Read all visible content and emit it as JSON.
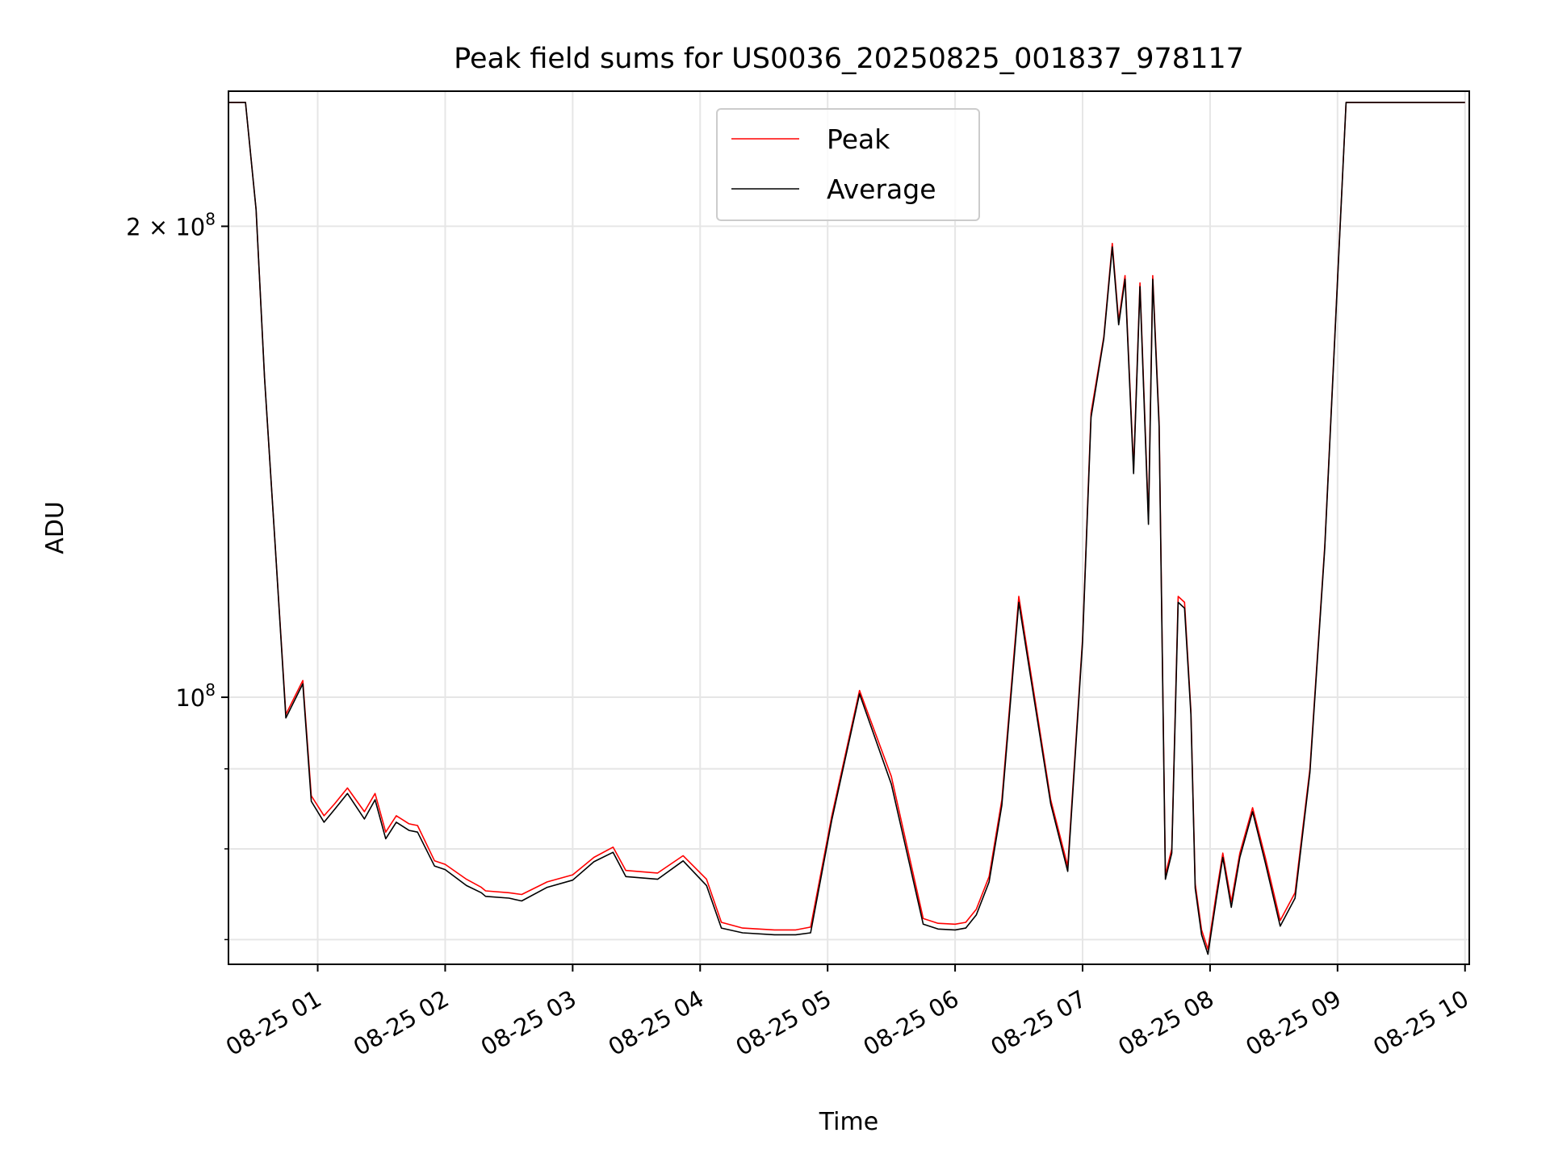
{
  "chart_data": {
    "type": "line",
    "title": "Peak field sums for US0036_20250825_001837_978117",
    "xlabel": "Time",
    "ylabel": "ADU",
    "yscale": "log",
    "ylim": [
      67500000,
      244000000
    ],
    "xlim": [
      "2025-08-25 00:18",
      "2025-08-25 10:02"
    ],
    "grid": true,
    "legend_position": "top-center",
    "x_tick_labels": [
      "08-25 01",
      "08-25 02",
      "08-25 03",
      "08-25 04",
      "08-25 05",
      "08-25 06",
      "08-25 07",
      "08-25 08",
      "08-25 09",
      "08-25 10"
    ],
    "x_ticks": [
      "2025-08-25 01:00",
      "2025-08-25 02:00",
      "2025-08-25 03:00",
      "2025-08-25 04:00",
      "2025-08-25 05:00",
      "2025-08-25 06:00",
      "2025-08-25 07:00",
      "2025-08-25 08:00",
      "2025-08-25 09:00",
      "2025-08-25 10:00"
    ],
    "y_major_ticks": [
      {
        "value": 100000000,
        "label_base": "10",
        "label_exp": "8"
      },
      {
        "value": 200000000,
        "label_base": "2 × 10",
        "label_exp": "8"
      }
    ],
    "y_minor_ticks": [
      70000000,
      80000000,
      90000000
    ],
    "series": [
      {
        "name": "Peak",
        "color": "#ff0000",
        "x": [
          "2025-08-25 00:18",
          "2025-08-25 00:26",
          "2025-08-25 00:31",
          "2025-08-25 00:35",
          "2025-08-25 00:40",
          "2025-08-25 00:45",
          "2025-08-25 00:53",
          "2025-08-25 00:57",
          "2025-08-25 01:03",
          "2025-08-25 01:08",
          "2025-08-25 01:14",
          "2025-08-25 01:22",
          "2025-08-25 01:27",
          "2025-08-25 01:32",
          "2025-08-25 01:37",
          "2025-08-25 01:43",
          "2025-08-25 01:47",
          "2025-08-25 01:55",
          "2025-08-25 02:00",
          "2025-08-25 02:10",
          "2025-08-25 02:17",
          "2025-08-25 02:19",
          "2025-08-25 02:30",
          "2025-08-25 02:36",
          "2025-08-25 02:48",
          "2025-08-25 03:00",
          "2025-08-25 03:10",
          "2025-08-25 03:19",
          "2025-08-25 03:25",
          "2025-08-25 03:40",
          "2025-08-25 03:52",
          "2025-08-25 04:03",
          "2025-08-25 04:10",
          "2025-08-25 04:20",
          "2025-08-25 04:35",
          "2025-08-25 04:45",
          "2025-08-25 04:52",
          "2025-08-25 05:02",
          "2025-08-25 05:15",
          "2025-08-25 05:30",
          "2025-08-25 05:45",
          "2025-08-25 05:52",
          "2025-08-25 06:00",
          "2025-08-25 06:05",
          "2025-08-25 06:10",
          "2025-08-25 06:16",
          "2025-08-25 06:22",
          "2025-08-25 06:30",
          "2025-08-25 06:45",
          "2025-08-25 06:53",
          "2025-08-25 07:00",
          "2025-08-25 07:04",
          "2025-08-25 07:10",
          "2025-08-25 07:14",
          "2025-08-25 07:17",
          "2025-08-25 07:20",
          "2025-08-25 07:24",
          "2025-08-25 07:27",
          "2025-08-25 07:31",
          "2025-08-25 07:33",
          "2025-08-25 07:36",
          "2025-08-25 07:39",
          "2025-08-25 07:42",
          "2025-08-25 07:45",
          "2025-08-25 07:48",
          "2025-08-25 07:51",
          "2025-08-25 07:53",
          "2025-08-25 07:56",
          "2025-08-25 07:59",
          "2025-08-25 08:03",
          "2025-08-25 08:06",
          "2025-08-25 08:10",
          "2025-08-25 08:14",
          "2025-08-25 08:20",
          "2025-08-25 08:26",
          "2025-08-25 08:33",
          "2025-08-25 08:40",
          "2025-08-25 08:47",
          "2025-08-25 08:54",
          "2025-08-25 09:00",
          "2025-08-25 09:04",
          "2025-08-25 09:10",
          "2025-08-25 09:17",
          "2025-08-25 09:23",
          "2025-08-25 09:28",
          "2025-08-25 09:34",
          "2025-08-25 09:40",
          "2025-08-25 09:48",
          "2025-08-25 09:55",
          "2025-08-25 10:00"
        ],
        "y": [
          240000000,
          240000000,
          205000000,
          160000000,
          125000000,
          97500000,
          102500000,
          86500000,
          84000000,
          85500000,
          87500000,
          84500000,
          86800000,
          82000000,
          84000000,
          83000000,
          82800000,
          78600000,
          78200000,
          76500000,
          75600000,
          75200000,
          75000000,
          74800000,
          76200000,
          77000000,
          79000000,
          80200000,
          77500000,
          77200000,
          79200000,
          76500000,
          71800000,
          71200000,
          71000000,
          71000000,
          71300000,
          84000000,
          101000000,
          89000000,
          72200000,
          71700000,
          71600000,
          71800000,
          73200000,
          76800000,
          86000000,
          116000000,
          86000000,
          78000000,
          109000000,
          152000000,
          170000000,
          195000000,
          174000000,
          186000000,
          140000000,
          184000000,
          130000000,
          186000000,
          150000000,
          77000000,
          80000000,
          116000000,
          115000000,
          98000000,
          76000000,
          71000000,
          69000000,
          75000000,
          79500000,
          74000000,
          79500000,
          85000000,
          79000000,
          72000000,
          75000000,
          90000000,
          125000000,
          185000000,
          240000000,
          240000000,
          240000000,
          240000000,
          240000000,
          240000000,
          240000000,
          240000000,
          240000000,
          240000000
        ]
      },
      {
        "name": "Average",
        "color": "#000000",
        "x": [
          "2025-08-25 00:18",
          "2025-08-25 00:26",
          "2025-08-25 00:31",
          "2025-08-25 00:35",
          "2025-08-25 00:40",
          "2025-08-25 00:45",
          "2025-08-25 00:53",
          "2025-08-25 00:57",
          "2025-08-25 01:03",
          "2025-08-25 01:08",
          "2025-08-25 01:14",
          "2025-08-25 01:22",
          "2025-08-25 01:27",
          "2025-08-25 01:32",
          "2025-08-25 01:37",
          "2025-08-25 01:43",
          "2025-08-25 01:47",
          "2025-08-25 01:55",
          "2025-08-25 02:00",
          "2025-08-25 02:10",
          "2025-08-25 02:17",
          "2025-08-25 02:19",
          "2025-08-25 02:30",
          "2025-08-25 02:36",
          "2025-08-25 02:48",
          "2025-08-25 03:00",
          "2025-08-25 03:10",
          "2025-08-25 03:19",
          "2025-08-25 03:25",
          "2025-08-25 03:40",
          "2025-08-25 03:52",
          "2025-08-25 04:03",
          "2025-08-25 04:10",
          "2025-08-25 04:20",
          "2025-08-25 04:35",
          "2025-08-25 04:45",
          "2025-08-25 04:52",
          "2025-08-25 05:02",
          "2025-08-25 05:15",
          "2025-08-25 05:30",
          "2025-08-25 05:45",
          "2025-08-25 05:52",
          "2025-08-25 06:00",
          "2025-08-25 06:05",
          "2025-08-25 06:10",
          "2025-08-25 06:16",
          "2025-08-25 06:22",
          "2025-08-25 06:30",
          "2025-08-25 06:45",
          "2025-08-25 06:53",
          "2025-08-25 07:00",
          "2025-08-25 07:04",
          "2025-08-25 07:10",
          "2025-08-25 07:14",
          "2025-08-25 07:17",
          "2025-08-25 07:20",
          "2025-08-25 07:24",
          "2025-08-25 07:27",
          "2025-08-25 07:31",
          "2025-08-25 07:33",
          "2025-08-25 07:36",
          "2025-08-25 07:39",
          "2025-08-25 07:42",
          "2025-08-25 07:45",
          "2025-08-25 07:48",
          "2025-08-25 07:51",
          "2025-08-25 07:53",
          "2025-08-25 07:56",
          "2025-08-25 07:59",
          "2025-08-25 08:03",
          "2025-08-25 08:06",
          "2025-08-25 08:10",
          "2025-08-25 08:14",
          "2025-08-25 08:20",
          "2025-08-25 08:26",
          "2025-08-25 08:33",
          "2025-08-25 08:40",
          "2025-08-25 08:47",
          "2025-08-25 08:54",
          "2025-08-25 09:00",
          "2025-08-25 09:04",
          "2025-08-25 09:10",
          "2025-08-25 09:17",
          "2025-08-25 09:23",
          "2025-08-25 09:28",
          "2025-08-25 09:34",
          "2025-08-25 09:40",
          "2025-08-25 09:48",
          "2025-08-25 09:55",
          "2025-08-25 10:00"
        ],
        "y": [
          240000000,
          240000000,
          205000000,
          160000000,
          125000000,
          97000000,
          102000000,
          85800000,
          83200000,
          84800000,
          86800000,
          83600000,
          86000000,
          81200000,
          83200000,
          82200000,
          82000000,
          78000000,
          77600000,
          75800000,
          75000000,
          74600000,
          74400000,
          74100000,
          75600000,
          76400000,
          78500000,
          79600000,
          76800000,
          76500000,
          78600000,
          75800000,
          71200000,
          70700000,
          70500000,
          70500000,
          70700000,
          83500000,
          100500000,
          88000000,
          71600000,
          71100000,
          71000000,
          71200000,
          72600000,
          76200000,
          85300000,
          115000000,
          85500000,
          77400000,
          108500000,
          151000000,
          169500000,
          194000000,
          173000000,
          185000000,
          139000000,
          183000000,
          129000000,
          185000000,
          149000000,
          76500000,
          79500000,
          115000000,
          114000000,
          97500000,
          75500000,
          70500000,
          68500000,
          74400000,
          79000000,
          73400000,
          79000000,
          84500000,
          78400000,
          71400000,
          74400000,
          89500000,
          124500000,
          184500000,
          240000000,
          240000000,
          240000000,
          240000000,
          240000000,
          240000000,
          240000000,
          240000000,
          240000000,
          240000000
        ]
      }
    ]
  }
}
